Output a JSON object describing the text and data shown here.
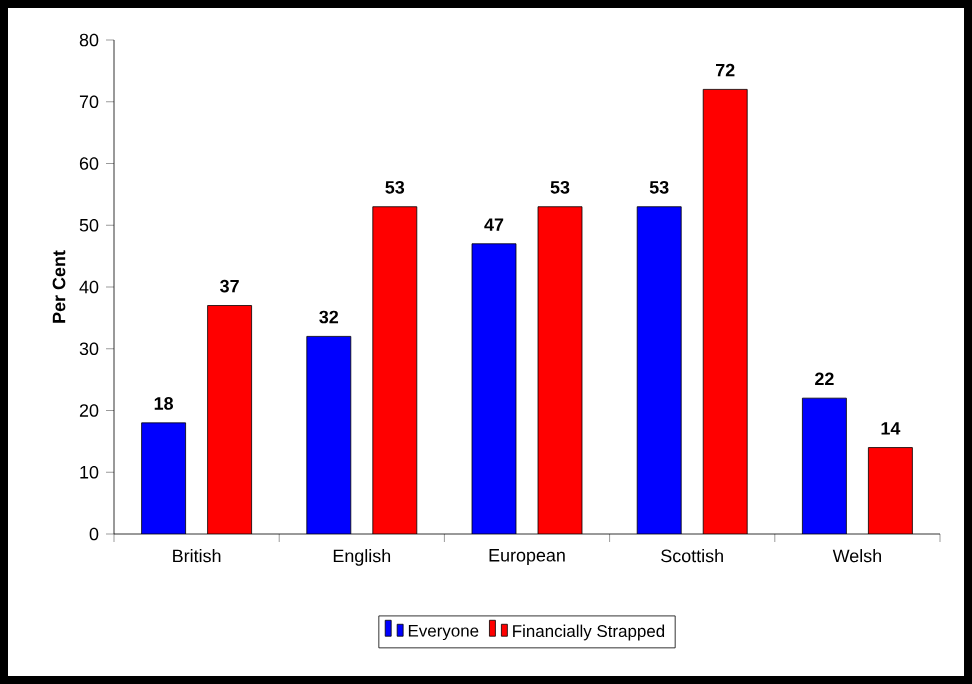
{
  "chart_data": {
    "type": "bar",
    "ylabel": "Per Cent",
    "categories": [
      "British",
      "English",
      "European",
      "Scottish",
      "Welsh"
    ],
    "series": [
      {
        "name": "Everyone",
        "color": "#0000ff",
        "values": [
          18,
          32,
          47,
          53,
          22
        ]
      },
      {
        "name": "Financially Strapped",
        "color": "#ff0000",
        "values": [
          37,
          53,
          53,
          72,
          14
        ]
      }
    ],
    "ylim": [
      0,
      80
    ],
    "yticks": [
      0,
      10,
      20,
      30,
      40,
      50,
      60,
      70,
      80
    ],
    "grid": false,
    "legend": "bottom",
    "data_labels": true
  }
}
